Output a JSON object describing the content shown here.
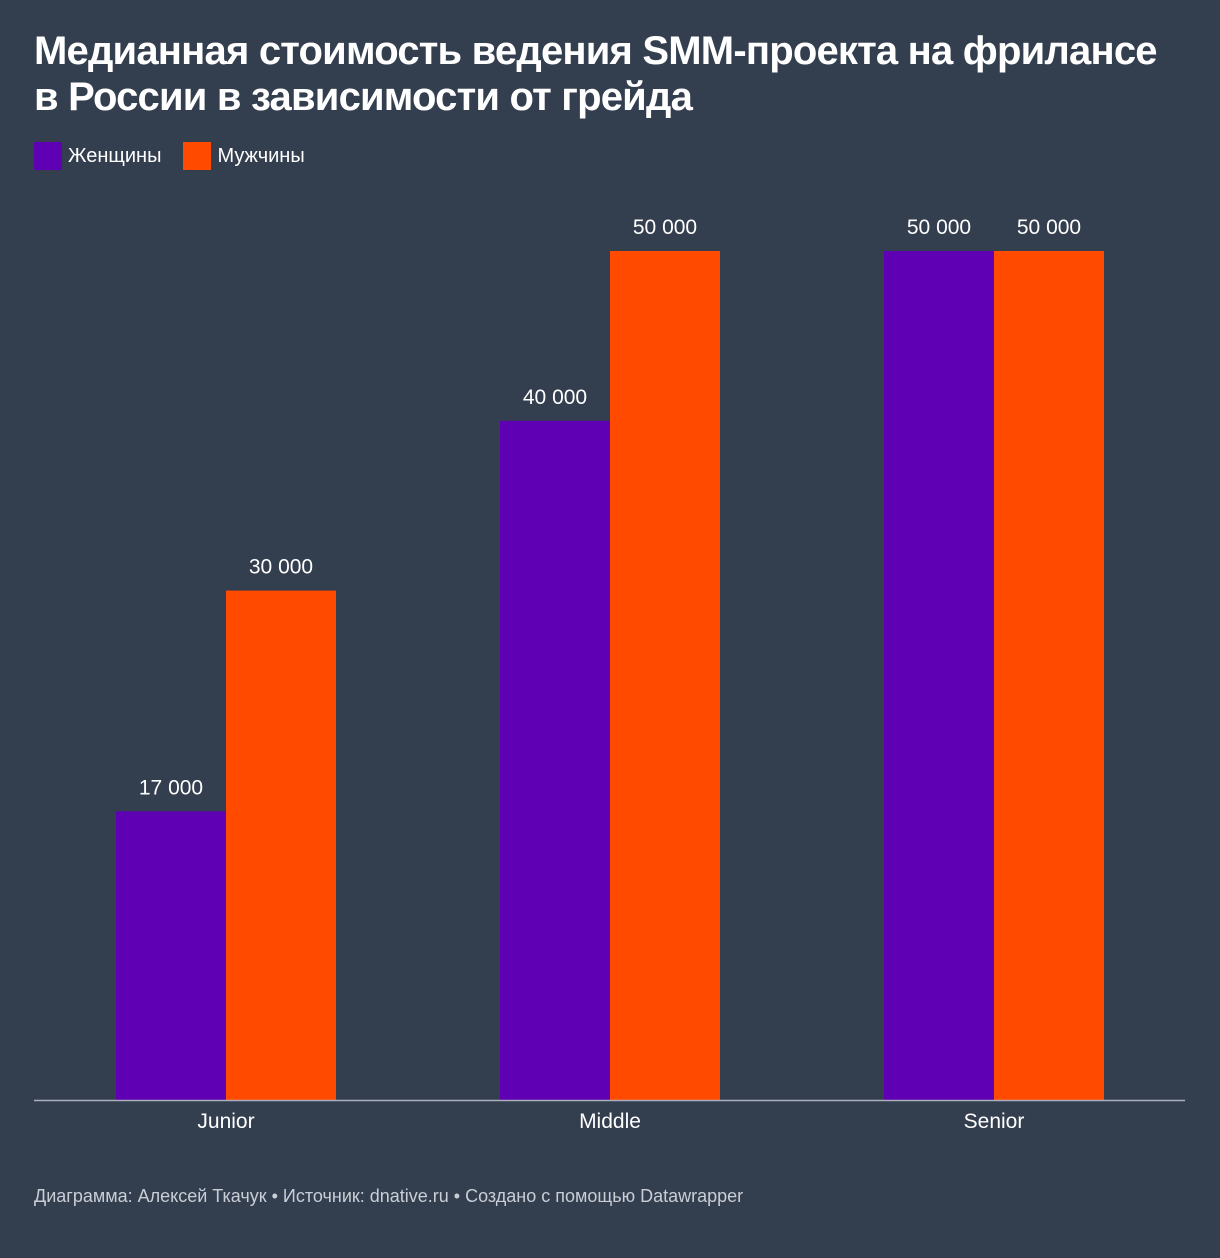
{
  "title": "Медианная стоимость ведения SMM-проекта на фрилансе в России в зависимости от грейда",
  "footer": "Диаграмма: Алексей Ткачук • Источник: dnative.ru • Создано с помощью Datawrapper",
  "colors": {
    "background": "#333e4f",
    "women": "#6000b5",
    "men": "#ff4a00",
    "axis": "#aab0b9"
  },
  "chart_data": {
    "type": "bar",
    "categories": [
      "Junior",
      "Middle",
      "Senior"
    ],
    "series": [
      {
        "name": "Женщины",
        "values": [
          17000,
          40000,
          50000
        ],
        "labels": [
          "17 000",
          "40 000",
          "50 000"
        ]
      },
      {
        "name": "Мужчины",
        "values": [
          30000,
          50000,
          50000
        ],
        "labels": [
          "30 000",
          "50 000",
          "50 000"
        ]
      }
    ],
    "ylim": [
      0,
      50000
    ],
    "grid": false,
    "legend": "top-left"
  }
}
